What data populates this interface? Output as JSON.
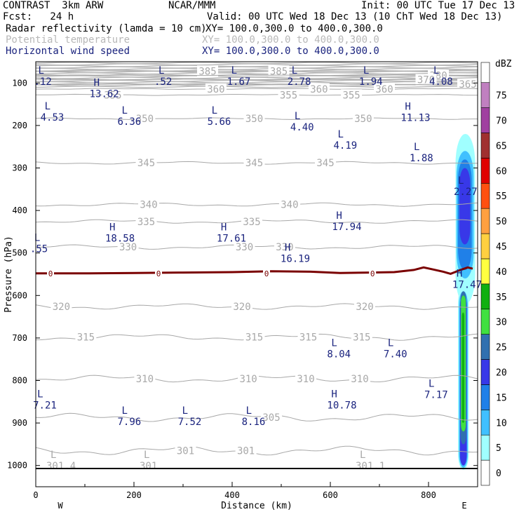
{
  "header": {
    "line1_left": "CONTRAST  3km ARW",
    "line1_mid": "NCAR/MMM",
    "line1_right": "Init: 00 UTC Tue 17 Dec 13",
    "line2_left": "Fcst:   24 h",
    "line2_right": "Valid: 00 UTC Wed 18 Dec 13 (10 ChT Wed 18 Dec 13)",
    "field1_name": "Radar reflectivity (lamda = 10 cm)",
    "field1_xy": "XY= 100.0,300.0 to 400.0,300.0",
    "field2_name": "Potential temperature",
    "field2_xy": "XY= 100.0,300.0 to 400.0,300.0",
    "field3_name": "Horizontal wind speed",
    "field3_xy": "XY= 100.0,300.0 to 400.0,300.0"
  },
  "colors": {
    "wind_label": "#1a237e",
    "theta_line": "#a8a8a8",
    "zero_contour": "#7a0000",
    "ground": "#000000"
  },
  "chart_data": {
    "type": "heatmap",
    "title": "Radar reflectivity (lamda = 10 cm)",
    "xlabel": "Distance (km)",
    "ylabel": "Pressure (hPa)",
    "xlim": [
      0,
      900
    ],
    "ylim": [
      50,
      1050
    ],
    "x_ticks": [
      0,
      200,
      400,
      600,
      800
    ],
    "y_ticks": [
      100,
      200,
      300,
      400,
      500,
      600,
      700,
      800,
      900,
      1000
    ],
    "x_end_labels": [
      "W",
      "E"
    ],
    "legend": {
      "unit": "dBZ",
      "levels": [
        0,
        5,
        10,
        15,
        20,
        25,
        30,
        35,
        40,
        45,
        50,
        55,
        60,
        65,
        70,
        75
      ],
      "colors": [
        "#ffffff",
        "#a0ffff",
        "#40c0ff",
        "#2080e8",
        "#3838e8",
        "#3070b0",
        "#40e040",
        "#10b010",
        "#ffff40",
        "#ffd040",
        "#ffa040",
        "#ff5010",
        "#e00000",
        "#a03030",
        "#a040a0",
        "#c080c0"
      ]
    },
    "theta_contours": [
      {
        "level": 385,
        "p": 72,
        "label_x": [
          350,
          495
        ]
      },
      {
        "level": 380,
        "p": 82,
        "label_x": [
          820
        ]
      },
      {
        "level": 370,
        "p": 92,
        "label_x": [
          795
        ]
      },
      {
        "level": 365,
        "p": 103,
        "label_x": [
          880
        ]
      },
      {
        "level": 360,
        "p": 114,
        "label_x": [
          367,
          577,
          710
        ]
      },
      {
        "level": 355,
        "p": 128,
        "label_x": [
          157,
          515,
          643
        ]
      },
      {
        "level": 350,
        "p": 184,
        "label_x": [
          222,
          445,
          667
        ]
      },
      {
        "level": 345,
        "p": 288,
        "label_x": [
          225,
          445,
          590
        ]
      },
      {
        "level": 340,
        "p": 386,
        "label_x": [
          230,
          517
        ]
      },
      {
        "level": 335,
        "p": 426,
        "label_x": [
          225,
          440
        ]
      },
      {
        "level": 330,
        "p": 486,
        "label_x": [
          188,
          425,
          507
        ]
      },
      {
        "level": 320,
        "p": 626,
        "label_x": [
          52,
          420,
          670
        ]
      },
      {
        "level": 315,
        "p": 698,
        "label_x": [
          102,
          445,
          555,
          664
        ]
      },
      {
        "level": 310,
        "p": 796,
        "label_x": [
          222,
          433,
          550,
          660
        ]
      },
      {
        "level": 305,
        "p": 887,
        "label_x": [
          480
        ]
      },
      {
        "level": 301,
        "p": 965,
        "label_x": [
          305,
          428
        ]
      }
    ],
    "zero_contour": {
      "level": 0,
      "label_x": [
        30,
        250,
        470,
        686
      ],
      "points": [
        [
          0,
          548
        ],
        [
          100,
          548
        ],
        [
          200,
          547
        ],
        [
          300,
          546
        ],
        [
          400,
          545
        ],
        [
          480,
          543
        ],
        [
          560,
          544
        ],
        [
          620,
          547
        ],
        [
          680,
          546
        ],
        [
          730,
          545
        ],
        [
          770,
          540
        ],
        [
          790,
          534
        ],
        [
          810,
          539
        ],
        [
          830,
          544
        ],
        [
          845,
          549
        ],
        [
          865,
          540
        ],
        [
          880,
          534
        ],
        [
          890,
          537
        ]
      ]
    },
    "annotations": [
      {
        "type": "L",
        "x": 5,
        "p": 78,
        "value": ".12"
      },
      {
        "type": "L",
        "x": 250,
        "p": 78,
        "value": ".52"
      },
      {
        "type": "L",
        "x": 398,
        "p": 78,
        "value": "1.67"
      },
      {
        "type": "L",
        "x": 521,
        "p": 78,
        "value": "2.78"
      },
      {
        "type": "L",
        "x": 667,
        "p": 78,
        "value": "1.94"
      },
      {
        "type": "L",
        "x": 810,
        "p": 78,
        "value": "4.08"
      },
      {
        "type": "H",
        "x": 118,
        "p": 107,
        "value": "13.62"
      },
      {
        "type": "L",
        "x": 18,
        "p": 162,
        "value": "4.53"
      },
      {
        "type": "L",
        "x": 175,
        "p": 172,
        "value": "6.36"
      },
      {
        "type": "L",
        "x": 358,
        "p": 172,
        "value": "5.66"
      },
      {
        "type": "L",
        "x": 527,
        "p": 185,
        "value": "4.40"
      },
      {
        "type": "L",
        "x": 615,
        "p": 228,
        "value": "4.19"
      },
      {
        "type": "H",
        "x": 752,
        "p": 163,
        "value": "11.13"
      },
      {
        "type": "L",
        "x": 770,
        "p": 258,
        "value": "1.88"
      },
      {
        "type": "L",
        "x": 860,
        "p": 337,
        "value": "2.27"
      },
      {
        "type": "H",
        "x": 612,
        "p": 420,
        "value": "17.94"
      },
      {
        "type": "H",
        "x": 150,
        "p": 447,
        "value": "18.58"
      },
      {
        "type": "H",
        "x": 377,
        "p": 447,
        "value": "17.61"
      },
      {
        "type": "L",
        "x": -3,
        "p": 472,
        "value": ".55"
      },
      {
        "type": "H",
        "x": 507,
        "p": 495,
        "value": "16.19"
      },
      {
        "type": "H",
        "x": 857,
        "p": 556,
        "value": "17.47"
      },
      {
        "type": "L",
        "x": 602,
        "p": 719,
        "value": "8.04"
      },
      {
        "type": "L",
        "x": 717,
        "p": 719,
        "value": "7.40"
      },
      {
        "type": "L",
        "x": 800,
        "p": 815,
        "value": "7.17"
      },
      {
        "type": "L",
        "x": 3,
        "p": 840,
        "value": "7.21"
      },
      {
        "type": "H",
        "x": 602,
        "p": 840,
        "value": "10.78"
      },
      {
        "type": "L",
        "x": 175,
        "p": 878,
        "value": "7.96"
      },
      {
        "type": "L",
        "x": 298,
        "p": 878,
        "value": "7.52"
      },
      {
        "type": "L",
        "x": 428,
        "p": 878,
        "value": "8.16"
      },
      {
        "type": "L",
        "x": 30,
        "p": 982,
        "value": "301.4"
      },
      {
        "type": "L",
        "x": 220,
        "p": 982,
        "value": "301"
      },
      {
        "type": "L",
        "x": 660,
        "p": 982,
        "value": "301.1"
      }
    ],
    "reflectivity_cells": [
      {
        "dbz": 5,
        "x_range": [
          855,
          895
        ],
        "p_range": [
          220,
          620
        ]
      },
      {
        "dbz": 10,
        "x_range": [
          857,
          892
        ],
        "p_range": [
          260,
          560
        ]
      },
      {
        "dbz": 15,
        "x_range": [
          860,
          888
        ],
        "p_range": [
          280,
          540
        ]
      },
      {
        "dbz": 20,
        "x_range": [
          863,
          885
        ],
        "p_range": [
          300,
          480
        ]
      },
      {
        "dbz": 5,
        "x_range": [
          860,
          882
        ],
        "p_range": [
          580,
          1010
        ]
      },
      {
        "dbz": 10,
        "x_range": [
          862,
          880
        ],
        "p_range": [
          590,
          1005
        ]
      },
      {
        "dbz": 20,
        "x_range": [
          864,
          878
        ],
        "p_range": [
          600,
          1000
        ]
      },
      {
        "dbz": 25,
        "x_range": [
          865,
          877
        ],
        "p_range": [
          590,
          950
        ]
      },
      {
        "dbz": 30,
        "x_range": [
          866,
          876
        ],
        "p_range": [
          600,
          920
        ]
      },
      {
        "dbz": 35,
        "x_range": [
          868,
          873
        ],
        "p_range": [
          640,
          900
        ]
      }
    ],
    "ground_p": 1007
  }
}
